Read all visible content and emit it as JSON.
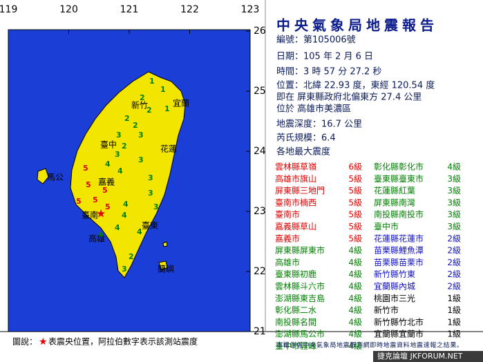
{
  "title": "中央氣象局地震報告",
  "axes": {
    "lon_ticks": [
      119,
      120,
      121,
      122,
      123
    ],
    "lat_ticks": [
      26,
      25,
      24,
      23,
      22,
      21
    ]
  },
  "report": [
    "編號：第105006號",
    "日期：105 年 2 月 6 日",
    "時間：3 時 57 分 27.2 秒",
    "位置：北緯 22.93 度，東經 120.54 度",
    "即在 屏東縣政府北偏東方 27.4 公里",
    "位於 高雄市美濃區",
    "地震深度：16.7 公里",
    "芮氏規模：6.4",
    "各地最大震度"
  ],
  "stations_left": [
    {
      "name": "雲林縣草嶺",
      "level": "6級",
      "color": "#e00000"
    },
    {
      "name": "高雄市旗山",
      "level": "5級",
      "color": "#e00000"
    },
    {
      "name": "屏東縣三地門",
      "level": "5級",
      "color": "#e00000"
    },
    {
      "name": "臺南市楠西",
      "level": "5級",
      "color": "#e00000"
    },
    {
      "name": "臺南市",
      "level": "5級",
      "color": "#e00000"
    },
    {
      "name": "嘉義縣草山",
      "level": "5級",
      "color": "#e00000"
    },
    {
      "name": "嘉義市",
      "level": "5級",
      "color": "#e00000"
    },
    {
      "name": "屏東縣屏東市",
      "level": "4級",
      "color": "#008000"
    },
    {
      "name": "高雄市",
      "level": "4級",
      "color": "#008000"
    },
    {
      "name": "臺東縣初鹿",
      "level": "4級",
      "color": "#008000"
    },
    {
      "name": "雲林縣斗六市",
      "level": "4級",
      "color": "#008000"
    },
    {
      "name": "澎湖縣東吉島",
      "level": "4級",
      "color": "#008000"
    },
    {
      "name": "彰化縣二水",
      "level": "4級",
      "color": "#008000"
    },
    {
      "name": "南投縣名間",
      "level": "4級",
      "color": "#008000"
    },
    {
      "name": "澎湖縣馬公市",
      "level": "4級",
      "color": "#008000"
    },
    {
      "name": "臺中市霧峰",
      "level": "4級",
      "color": "#008000"
    }
  ],
  "stations_right": [
    {
      "name": "彰化縣彰化市",
      "level": "4級",
      "color": "#008000"
    },
    {
      "name": "臺東縣臺東市",
      "level": "3級",
      "color": "#008000"
    },
    {
      "name": "花蓮縣紅葉",
      "level": "3級",
      "color": "#008000"
    },
    {
      "name": "屏東縣南灣",
      "level": "3級",
      "color": "#008000"
    },
    {
      "name": "南投縣南投市",
      "level": "3級",
      "color": "#008000"
    },
    {
      "name": "臺中市",
      "level": "3級",
      "color": "#008000"
    },
    {
      "name": "花蓮縣花蓮市",
      "level": "2級",
      "color": "#1010c0"
    },
    {
      "name": "苗栗縣鯉魚潭",
      "level": "2級",
      "color": "#1010c0"
    },
    {
      "name": "苗栗縣苗栗市",
      "level": "2級",
      "color": "#1010c0"
    },
    {
      "name": "新竹縣竹東",
      "level": "2級",
      "color": "#1010c0"
    },
    {
      "name": "宜蘭縣內城",
      "level": "2級",
      "color": "#1010c0"
    },
    {
      "name": "桃園市三光",
      "level": "1級",
      "color": "#000000"
    },
    {
      "name": "新竹市",
      "level": "1級",
      "color": "#000000"
    },
    {
      "name": "新竹縣竹北市",
      "level": "1級",
      "color": "#000000"
    },
    {
      "name": "宜蘭縣宜蘭市",
      "level": "1級",
      "color": "#000000"
    }
  ],
  "places": [
    "新竹",
    "宜蘭",
    "臺中",
    "花蓮",
    "嘉義",
    "馬公",
    "臺南",
    "臺東",
    "高雄",
    "蘭嶼"
  ],
  "map_digits": [
    "1",
    "1",
    "2",
    "2",
    "1",
    "2",
    "2",
    "3",
    "3",
    "2",
    "3",
    "3",
    "4",
    "4",
    "3",
    "5",
    "5",
    "5",
    "5",
    "5",
    "5",
    "4",
    "4",
    "3",
    "4",
    "4",
    "3",
    "2",
    "4",
    "3"
  ],
  "legend": {
    "label": "圖說：",
    "star": "★",
    "text": "表震央位置，阿拉伯數字表示該測站震度"
  },
  "note": "本報告係中央氣象局地震觀測網即時地震資料地震速報之結果。",
  "watermark": "捷克論壇 JKFORUM.NET"
}
